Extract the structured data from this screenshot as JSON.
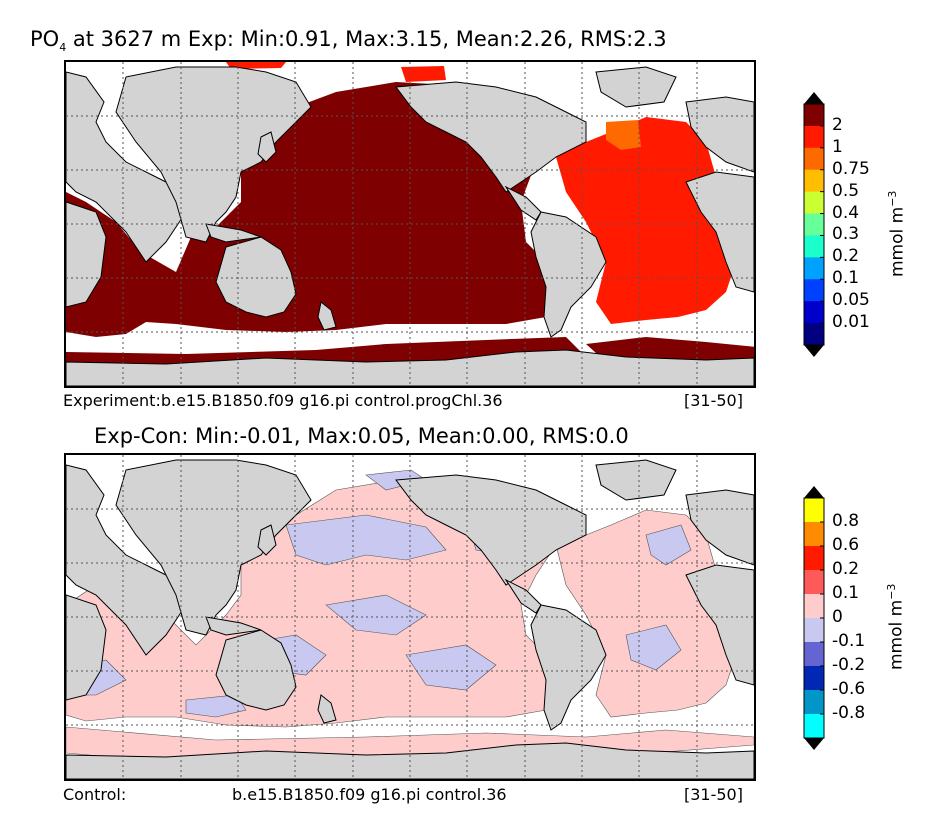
{
  "top": {
    "title_var": "PO",
    "title_sub": "4",
    "title_rest": " at 3627 m Exp: Min:0.91, Max:3.15, Mean:2.26, RMS:2.3",
    "caption_left": "Experiment:b.e15.B1850.f09 g16.pi control.progChl.36",
    "caption_right": "[31-50]",
    "colorbar": {
      "units_base": "mmol m",
      "units_exp": "−3",
      "labels": [
        "2",
        "1",
        "0.75",
        "0.5",
        "0.4",
        "0.3",
        "0.2",
        "0.1",
        "0.05",
        "0.01"
      ],
      "colors": [
        "#7f0000",
        "#ff1a00",
        "#ff6a00",
        "#ffbf00",
        "#ccff33",
        "#66ff99",
        "#1affcc",
        "#00a2ff",
        "#0040ff",
        "#0000cc",
        "#000080"
      ],
      "over_color": "#000000",
      "under_color": "#000000"
    }
  },
  "bottom": {
    "title": "Exp-Con: Min:-0.01, Max:0.05, Mean:0.00, RMS:0.0",
    "caption_left": "Control:",
    "caption_center": "b.e15.B1850.f09 g16.pi control.36",
    "caption_right": "[31-50]",
    "colorbar": {
      "units_base": "mmol m",
      "units_exp": "−3",
      "labels": [
        "0.8",
        "0.6",
        "0.2",
        "0.1",
        "0",
        "-0.1",
        "-0.2",
        "-0.6",
        "-0.8"
      ],
      "colors": [
        "#ffff00",
        "#ff8c00",
        "#ff1a00",
        "#ff5a5a",
        "#ffcccc",
        "#c8c8f0",
        "#6464d2",
        "#0028b4",
        "#0096c8",
        "#00ffff"
      ],
      "over_color": "#000000",
      "under_color": "#000000"
    }
  },
  "map_colors": {
    "land": "#d3d3d3",
    "ocean_missing": "#ffffff",
    "pacific_indian_po4": "#7f0000",
    "atlantic_po4": "#ff1a00",
    "labrador_po4": "#ff6a00",
    "diff_positive": "#ffcccc",
    "diff_negative": "#c8c8f0"
  }
}
